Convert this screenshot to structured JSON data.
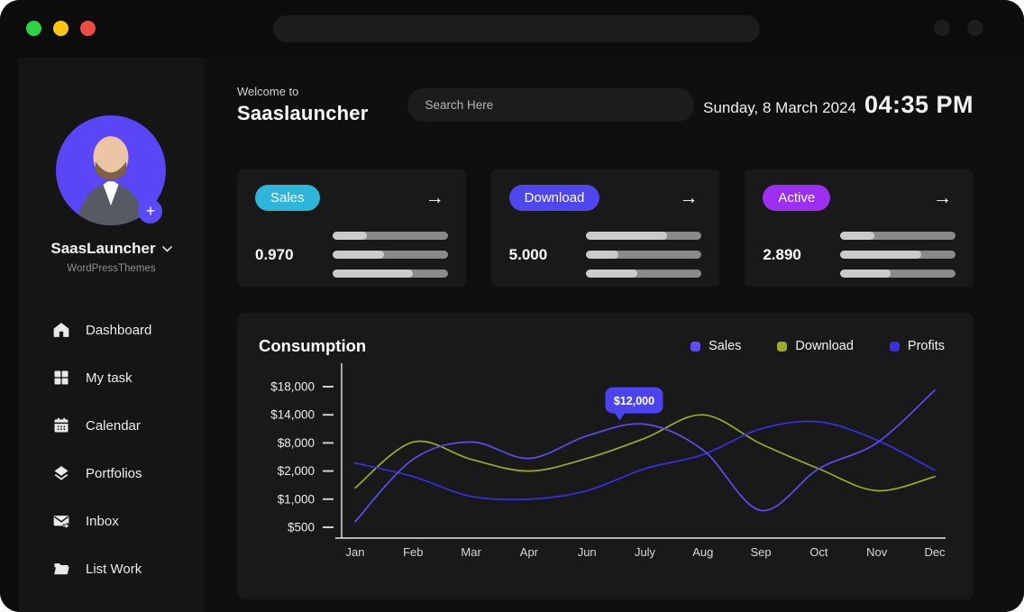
{
  "window": {
    "traffic_lights": {
      "green": "#2fd146",
      "yellow": "#fcc612",
      "red": "#ed4c44"
    }
  },
  "icons": {
    "arrow_right": "→",
    "plus": "+"
  },
  "sidebar": {
    "profile": {
      "name": "SaasLauncher",
      "subtitle": "WordPressThemes"
    },
    "items": [
      {
        "label": "Dashboard",
        "icon": "home"
      },
      {
        "label": "My task",
        "icon": "grid"
      },
      {
        "label": "Calendar",
        "icon": "calendar"
      },
      {
        "label": "Portfolios",
        "icon": "layers"
      },
      {
        "label": "Inbox",
        "icon": "inbox"
      },
      {
        "label": "List Work",
        "icon": "folder"
      }
    ]
  },
  "header": {
    "welcome": "Welcome to",
    "app_name": "Saaslauncher",
    "search_placeholder": "Search Here",
    "date": "Sunday, 8 March 2024",
    "time": "04:35 PM"
  },
  "stat_cards": [
    {
      "label": "Sales",
      "color": "#2eb5da",
      "value": "0.970",
      "bars": [
        30,
        45,
        70
      ]
    },
    {
      "label": "Download",
      "color": "#4f46ed",
      "value": "5.000",
      "bars": [
        70,
        28,
        44
      ]
    },
    {
      "label": "Active",
      "color": "#9d2ff2",
      "value": "2.890",
      "bars": [
        30,
        70,
        44
      ]
    }
  ],
  "chart_data": {
    "type": "line",
    "title": "Consumption",
    "xlabel": "",
    "ylabel": "",
    "categories": [
      "Jan",
      "Feb",
      "Mar",
      "Apr",
      "Jun",
      "July",
      "Aug",
      "Sep",
      "Oct",
      "Nov",
      "Dec"
    ],
    "y_tick_labels": [
      "$18,000",
      "$14,000",
      "$8,000",
      "$2,000",
      "$1,000",
      "$500"
    ],
    "y_tick_values": [
      18000,
      14000,
      8000,
      2000,
      1000,
      500
    ],
    "ylim": [
      500,
      18000
    ],
    "grid": false,
    "legend_position": "top-right",
    "series": [
      {
        "name": "Sales",
        "color": "#5b4df2",
        "values": [
          600,
          4500,
          8200,
          4700,
          9500,
          12000,
          6500,
          800,
          2500,
          8000,
          17500
        ]
      },
      {
        "name": "Download",
        "color": "#9cab26",
        "values": [
          1400,
          8200,
          4500,
          2000,
          4700,
          9000,
          14000,
          7800,
          2500,
          1300,
          1800
        ]
      },
      {
        "name": "Profits",
        "color": "#3a2ee8",
        "values": [
          3700,
          1800,
          1100,
          1000,
          1300,
          2500,
          5500,
          11000,
          12500,
          8600,
          2200
        ]
      }
    ],
    "tooltip": {
      "text": "$12,000",
      "series": "Sales",
      "month_index": 5,
      "color": "#4b43f0"
    }
  }
}
